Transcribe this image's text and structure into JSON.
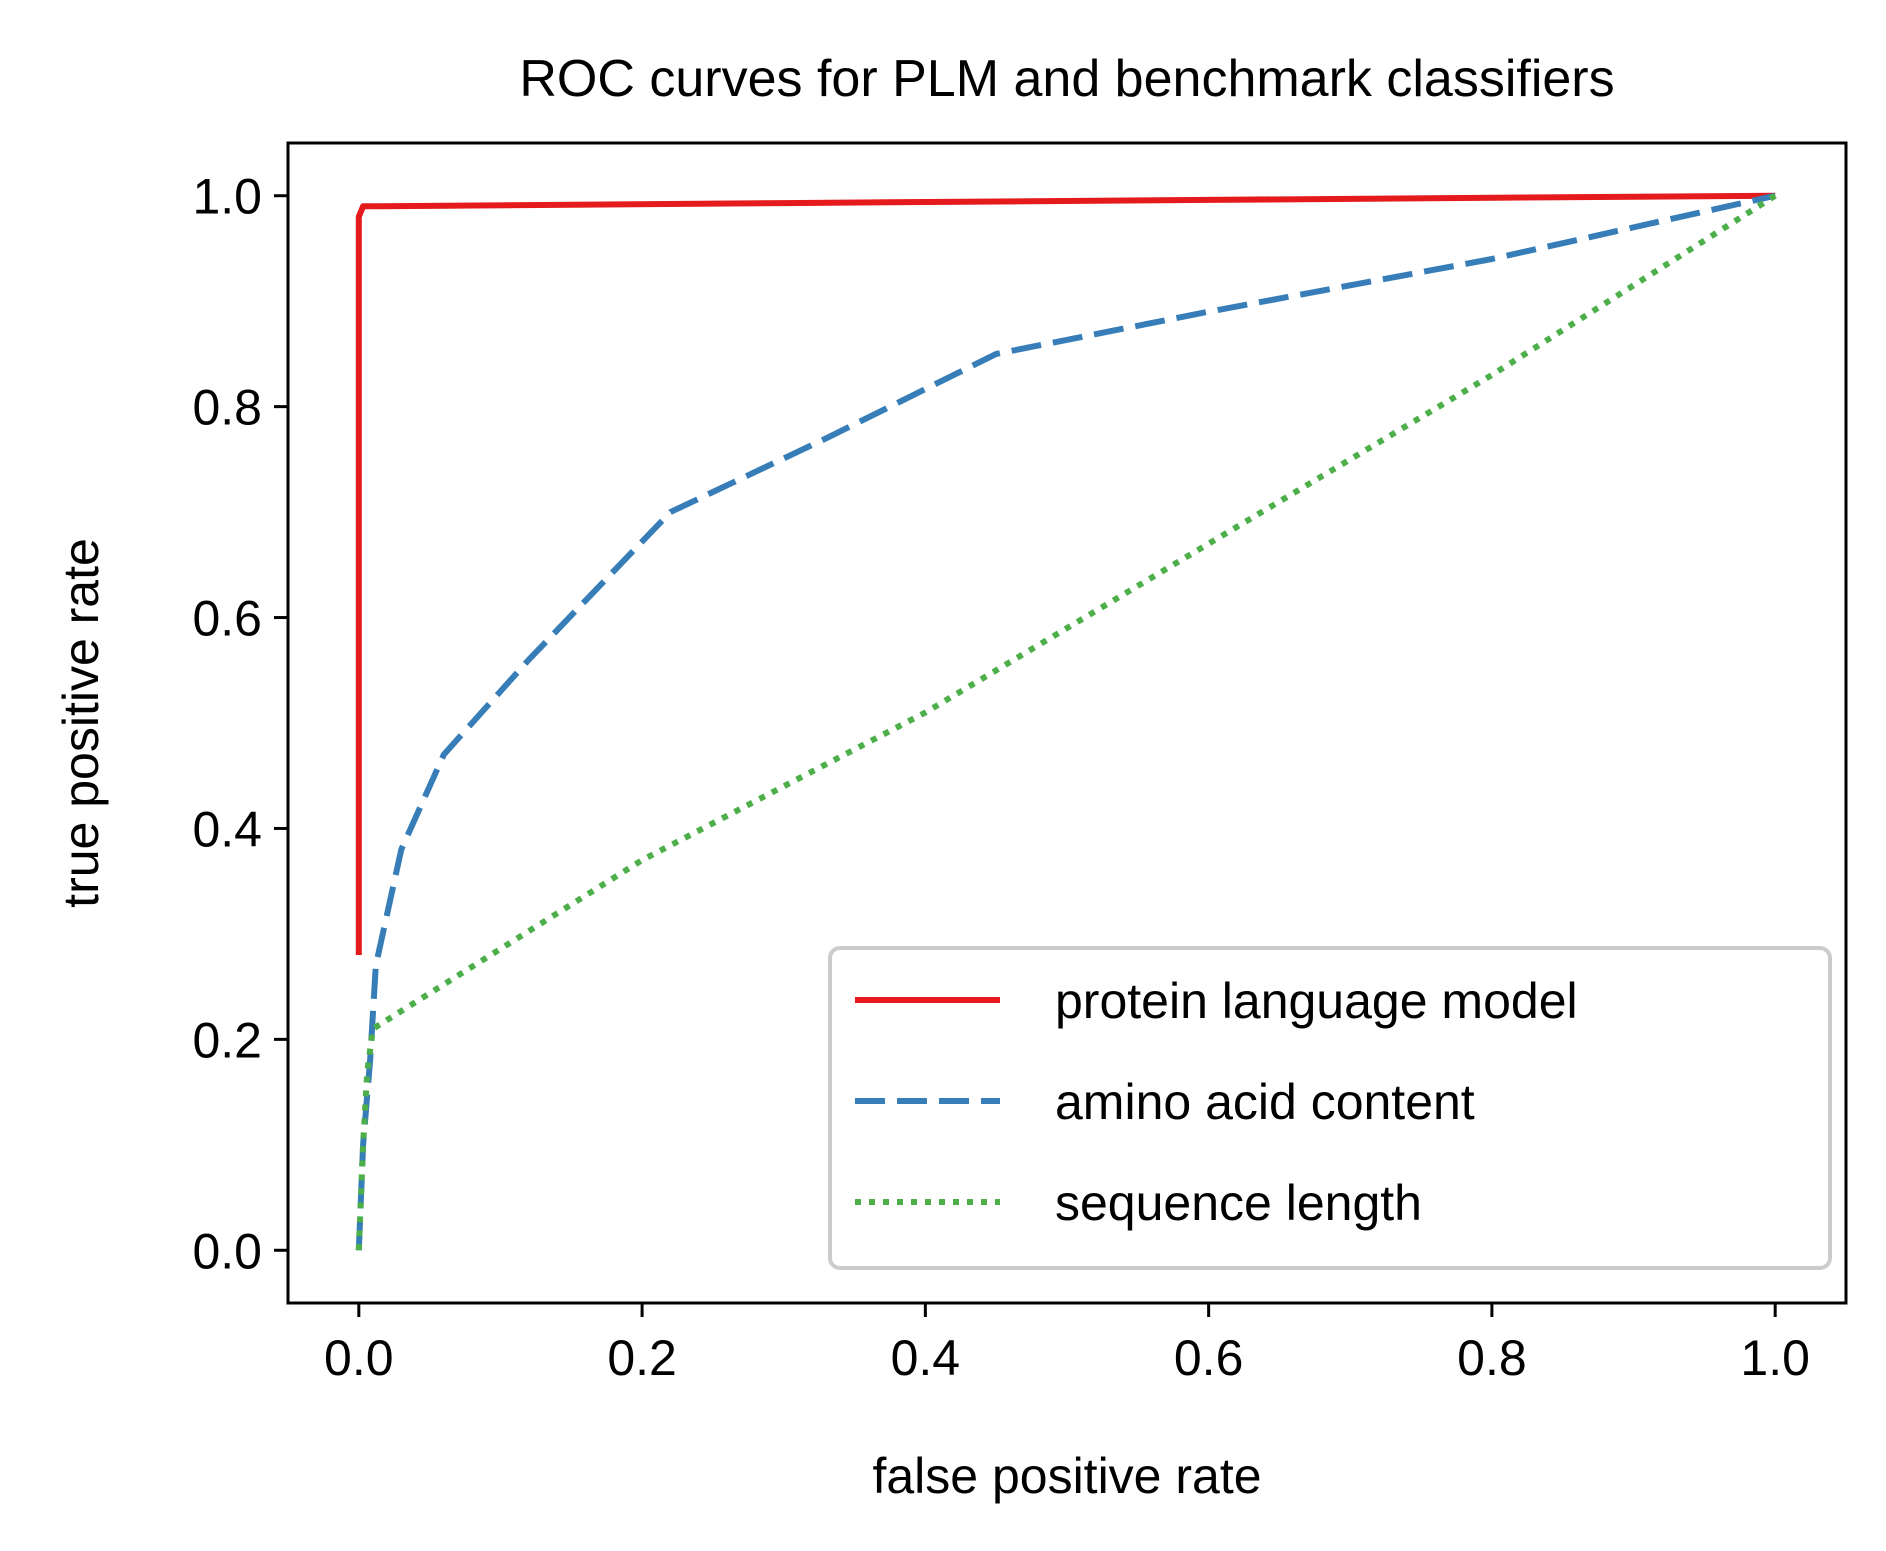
{
  "chart_data": {
    "type": "line",
    "title": "ROC curves for PLM and benchmark classifiers",
    "xlabel": "false positive rate",
    "ylabel": "true positive rate",
    "xlim": [
      -0.05,
      1.05
    ],
    "ylim": [
      -0.05,
      1.05
    ],
    "xticks": [
      "0.0",
      "0.2",
      "0.4",
      "0.6",
      "0.8",
      "1.0"
    ],
    "yticks": [
      "0.0",
      "0.2",
      "0.4",
      "0.6",
      "0.8",
      "1.0"
    ],
    "grid": false,
    "legend": "lower-right",
    "series": [
      {
        "name": "protein language model",
        "color": "#e41a1c",
        "style": "solid",
        "x": [
          0.0,
          0.0,
          0.0,
          0.0,
          0.003,
          0.01,
          0.3,
          0.6,
          1.0
        ],
        "y": [
          0.28,
          0.5,
          0.8,
          0.98,
          0.99,
          0.99,
          0.993,
          0.996,
          1.0
        ]
      },
      {
        "name": "amino acid content",
        "color": "#377eb8",
        "style": "dashed",
        "x": [
          0.0,
          0.003,
          0.008,
          0.012,
          0.03,
          0.06,
          0.12,
          0.22,
          0.33,
          0.45,
          0.6,
          0.8,
          1.0
        ],
        "y": [
          0.0,
          0.1,
          0.18,
          0.27,
          0.38,
          0.47,
          0.56,
          0.7,
          0.77,
          0.85,
          0.89,
          0.94,
          1.0
        ]
      },
      {
        "name": "sequence length",
        "color": "#4daf4a",
        "style": "dotted",
        "x": [
          0.0,
          0.003,
          0.006,
          0.01,
          0.2,
          0.4,
          0.6,
          0.8,
          1.0
        ],
        "y": [
          0.0,
          0.1,
          0.17,
          0.21,
          0.37,
          0.51,
          0.67,
          0.83,
          1.0
        ]
      }
    ]
  }
}
